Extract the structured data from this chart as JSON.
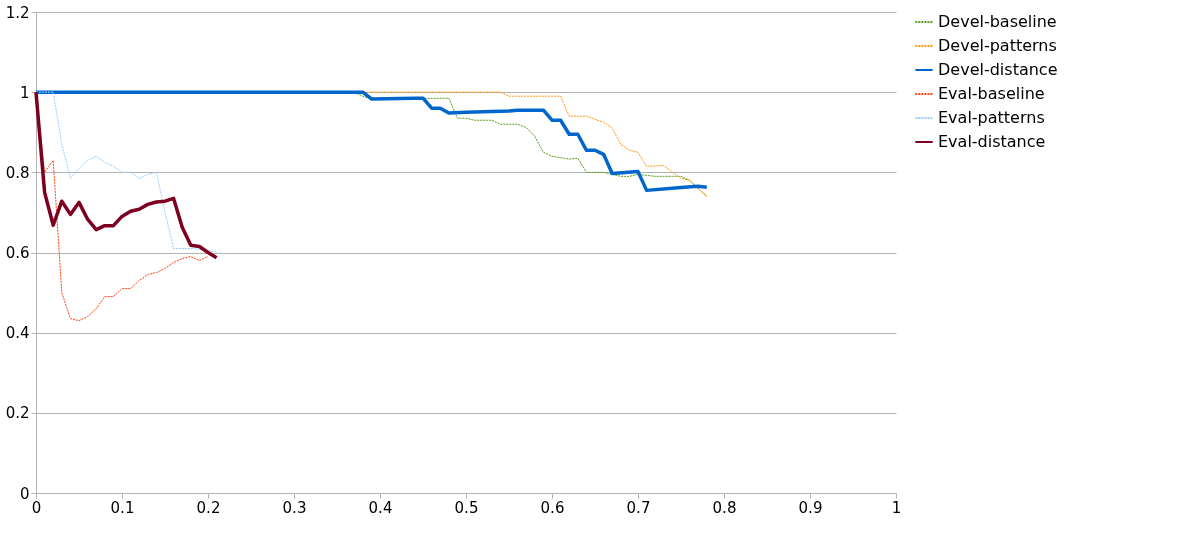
{
  "chart_data": {
    "type": "line",
    "xlim": [
      0,
      1
    ],
    "ylim": [
      0,
      1.2
    ],
    "xticks": [
      0,
      0.1,
      0.2,
      0.3,
      0.4,
      0.5,
      0.6,
      0.7,
      0.8,
      0.9,
      1
    ],
    "yticks": [
      0,
      0.2,
      0.4,
      0.6,
      0.8,
      1,
      1.2
    ],
    "grid": "y",
    "legend": "right",
    "marker": "none",
    "series": [
      {
        "name": "Devel-baseline",
        "color": "#579d1c",
        "line_style": "dashed",
        "x": [
          0,
          0.37,
          0.38,
          0.39,
          0.48,
          0.49,
          0.5,
          0.51,
          0.53,
          0.54,
          0.56,
          0.57,
          0.58,
          0.59,
          0.6,
          0.62,
          0.63,
          0.64,
          0.66,
          0.67,
          0.68,
          0.69,
          0.7,
          0.72,
          0.74,
          0.75,
          0.76,
          0.78
        ],
        "values": [
          1,
          1,
          0.99,
          0.983,
          0.985,
          0.935,
          0.935,
          0.93,
          0.93,
          0.92,
          0.92,
          0.912,
          0.89,
          0.85,
          0.84,
          0.833,
          0.835,
          0.8,
          0.8,
          0.795,
          0.79,
          0.79,
          0.795,
          0.79,
          0.79,
          0.79,
          0.78,
          0.74
        ]
      },
      {
        "name": "Devel-patterns",
        "color": "#ff950e",
        "line_style": "dashed",
        "x": [
          0,
          0.54,
          0.55,
          0.61,
          0.62,
          0.64,
          0.66,
          0.67,
          0.68,
          0.69,
          0.7,
          0.71,
          0.73,
          0.74,
          0.75,
          0.76,
          0.78
        ],
        "values": [
          1,
          1,
          0.99,
          0.99,
          0.94,
          0.94,
          0.925,
          0.91,
          0.87,
          0.855,
          0.85,
          0.815,
          0.817,
          0.8,
          0.785,
          0.78,
          0.74
        ]
      },
      {
        "name": "Devel-distance",
        "color": "#0066cc",
        "line_style": "solid",
        "x": [
          0,
          0.38,
          0.39,
          0.44,
          0.45,
          0.46,
          0.47,
          0.48,
          0.5,
          0.55,
          0.56,
          0.59,
          0.6,
          0.61,
          0.62,
          0.63,
          0.64,
          0.65,
          0.66,
          0.67,
          0.7,
          0.71,
          0.75,
          0.77,
          0.78
        ],
        "values": [
          1,
          1,
          0.983,
          0.985,
          0.985,
          0.96,
          0.96,
          0.948,
          0.95,
          0.953,
          0.955,
          0.955,
          0.93,
          0.93,
          0.895,
          0.895,
          0.855,
          0.855,
          0.845,
          0.797,
          0.802,
          0.755,
          0.762,
          0.765,
          0.763
        ]
      },
      {
        "name": "Eval-baseline",
        "color": "#ff420e",
        "line_style": "dashed",
        "x": [
          0,
          0.01,
          0.02,
          0.03,
          0.04,
          0.05,
          0.06,
          0.07,
          0.08,
          0.09,
          0.1,
          0.11,
          0.12,
          0.13,
          0.14,
          0.15,
          0.16,
          0.17,
          0.18,
          0.19,
          0.2
        ],
        "values": [
          1,
          0.8,
          0.83,
          0.5,
          0.435,
          0.43,
          0.44,
          0.46,
          0.49,
          0.49,
          0.51,
          0.51,
          0.53,
          0.545,
          0.55,
          0.56,
          0.575,
          0.585,
          0.59,
          0.58,
          0.59
        ]
      },
      {
        "name": "Eval-patterns",
        "color": "#99ccff",
        "line_style": "dashed",
        "x": [
          0,
          0.02,
          0.03,
          0.04,
          0.05,
          0.06,
          0.07,
          0.08,
          0.09,
          0.1,
          0.11,
          0.12,
          0.13,
          0.14,
          0.15,
          0.16,
          0.17,
          0.18,
          0.19,
          0.2,
          0.21
        ],
        "values": [
          1,
          1,
          0.87,
          0.785,
          0.81,
          0.83,
          0.84,
          0.825,
          0.815,
          0.8,
          0.8,
          0.785,
          0.795,
          0.8,
          0.7,
          0.61,
          0.61,
          0.61,
          0.608,
          0.605,
          0.6
        ]
      },
      {
        "name": "Eval-distance",
        "color": "#7e0021",
        "line_style": "solid",
        "x": [
          0,
          0.01,
          0.02,
          0.03,
          0.04,
          0.05,
          0.06,
          0.07,
          0.08,
          0.09,
          0.1,
          0.11,
          0.12,
          0.13,
          0.14,
          0.15,
          0.16,
          0.17,
          0.18,
          0.19,
          0.2,
          0.21
        ],
        "values": [
          1,
          0.75,
          0.668,
          0.728,
          0.695,
          0.725,
          0.683,
          0.657,
          0.667,
          0.667,
          0.69,
          0.703,
          0.708,
          0.72,
          0.726,
          0.728,
          0.735,
          0.663,
          0.618,
          0.615,
          0.6,
          0.587
        ]
      }
    ]
  }
}
